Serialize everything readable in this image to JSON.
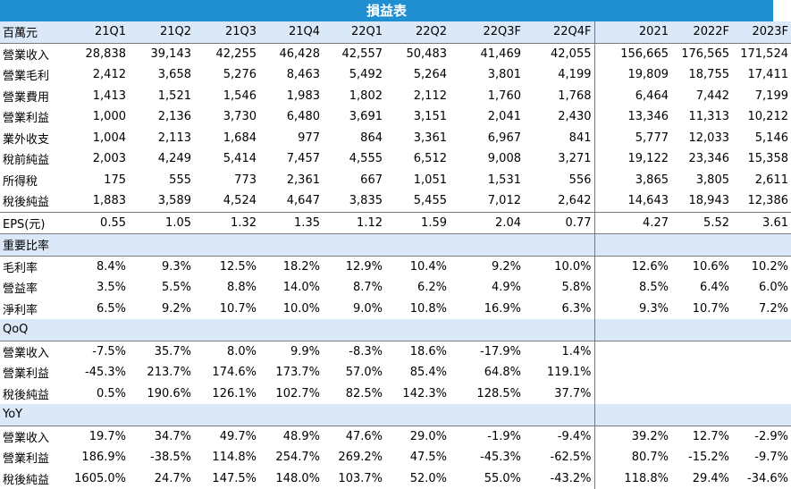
{
  "title": "損益表",
  "header": [
    "百萬元",
    "21Q1",
    "21Q2",
    "21Q3",
    "21Q4",
    "22Q1",
    "22Q2",
    "22Q3F",
    "22Q4F",
    "2021",
    "2022F",
    "2023F"
  ],
  "main_rows": [
    {
      "label": "營業收入",
      "values": [
        "28,838",
        "39,143",
        "42,255",
        "46,428",
        "42,557",
        "50,483",
        "41,469",
        "42,055",
        "156,665",
        "176,565",
        "171,524"
      ]
    },
    {
      "label": "營業毛利",
      "values": [
        "2,412",
        "3,658",
        "5,276",
        "8,463",
        "5,492",
        "5,264",
        "3,801",
        "4,199",
        "19,809",
        "18,755",
        "17,411"
      ]
    },
    {
      "label": "營業費用",
      "values": [
        "1,413",
        "1,521",
        "1,546",
        "1,983",
        "1,802",
        "2,112",
        "1,760",
        "1,768",
        "6,464",
        "7,442",
        "7,199"
      ]
    },
    {
      "label": "營業利益",
      "values": [
        "1,000",
        "2,136",
        "3,730",
        "6,480",
        "3,691",
        "3,151",
        "2,041",
        "2,430",
        "13,346",
        "11,313",
        "10,212"
      ]
    },
    {
      "label": "業外收支",
      "values": [
        "1,004",
        "2,113",
        "1,684",
        "977",
        "864",
        "3,361",
        "6,967",
        "841",
        "5,777",
        "12,033",
        "5,146"
      ]
    },
    {
      "label": "稅前純益",
      "values": [
        "2,003",
        "4,249",
        "5,414",
        "7,457",
        "4,555",
        "6,512",
        "9,008",
        "3,271",
        "19,122",
        "23,346",
        "15,358"
      ]
    },
    {
      "label": "所得稅",
      "values": [
        "175",
        "555",
        "773",
        "2,361",
        "667",
        "1,051",
        "1,531",
        "556",
        "3,865",
        "3,805",
        "2,611"
      ]
    },
    {
      "label": "稅後純益",
      "values": [
        "1,883",
        "3,589",
        "4,524",
        "4,647",
        "3,835",
        "5,455",
        "7,012",
        "2,642",
        "14,643",
        "18,943",
        "12,386"
      ]
    }
  ],
  "eps_row": {
    "label": "EPS(元)",
    "values": [
      "0.55",
      "1.05",
      "1.32",
      "1.35",
      "1.12",
      "1.59",
      "2.04",
      "0.77",
      "4.27",
      "5.52",
      "3.61"
    ]
  },
  "sections": [
    {
      "title": "重要比率",
      "rows": [
        {
          "label": "毛利率",
          "values": [
            "8.4%",
            "9.3%",
            "12.5%",
            "18.2%",
            "12.9%",
            "10.4%",
            "9.2%",
            "10.0%",
            "12.6%",
            "10.6%",
            "10.2%"
          ]
        },
        {
          "label": "營益率",
          "values": [
            "3.5%",
            "5.5%",
            "8.8%",
            "14.0%",
            "8.7%",
            "6.2%",
            "4.9%",
            "5.8%",
            "8.5%",
            "6.4%",
            "6.0%"
          ]
        },
        {
          "label": "淨利率",
          "values": [
            "6.5%",
            "9.2%",
            "10.7%",
            "10.0%",
            "9.0%",
            "10.8%",
            "16.9%",
            "6.3%",
            "9.3%",
            "10.7%",
            "7.2%"
          ]
        }
      ]
    },
    {
      "title": "QoQ",
      "rows": [
        {
          "label": "營業收入",
          "values": [
            "-7.5%",
            "35.7%",
            "8.0%",
            "9.9%",
            "-8.3%",
            "18.6%",
            "-17.9%",
            "1.4%",
            "",
            "",
            ""
          ]
        },
        {
          "label": "營業利益",
          "values": [
            "-45.3%",
            "213.7%",
            "174.6%",
            "173.7%",
            "57.0%",
            "85.4%",
            "64.8%",
            "119.1%",
            "",
            "",
            ""
          ]
        },
        {
          "label": "稅後純益",
          "values": [
            "0.5%",
            "190.6%",
            "126.1%",
            "102.7%",
            "82.5%",
            "142.3%",
            "128.5%",
            "37.7%",
            "",
            "",
            ""
          ]
        }
      ]
    },
    {
      "title": "YoY",
      "rows": [
        {
          "label": "營業收入",
          "values": [
            "19.7%",
            "34.7%",
            "49.7%",
            "48.9%",
            "47.6%",
            "29.0%",
            "-1.9%",
            "-9.4%",
            "39.2%",
            "12.7%",
            "-2.9%"
          ]
        },
        {
          "label": "營業利益",
          "values": [
            "186.9%",
            "-38.5%",
            "114.8%",
            "254.7%",
            "269.2%",
            "47.5%",
            "-45.3%",
            "-62.5%",
            "80.7%",
            "-15.2%",
            "-9.7%"
          ]
        },
        {
          "label": "稅後純益",
          "values": [
            "1605.0%",
            "24.7%",
            "147.5%",
            "148.0%",
            "103.7%",
            "52.0%",
            "55.0%",
            "-43.2%",
            "118.8%",
            "29.4%",
            "-34.6%"
          ]
        }
      ]
    }
  ]
}
